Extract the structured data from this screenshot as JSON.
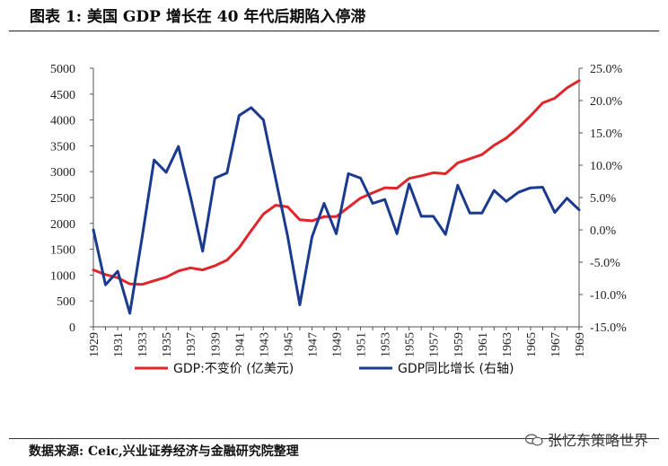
{
  "header": {
    "title": "图表 1:  美国 GDP 增长在 40 年代后期陷入停滞"
  },
  "footer": {
    "source": "数据来源: Ceic,兴业证券经济与金融研究院整理",
    "watermark": "张忆东策略世界"
  },
  "colors": {
    "gdp": "#e0262b",
    "growth": "#1a3a8f",
    "axis": "#555555"
  },
  "chart_data": {
    "type": "line",
    "title": "美国 GDP 增长在 40 年代后期陷入停滞",
    "x": [
      1929,
      1930,
      1931,
      1932,
      1933,
      1934,
      1935,
      1936,
      1937,
      1938,
      1939,
      1940,
      1941,
      1942,
      1943,
      1944,
      1945,
      1946,
      1947,
      1948,
      1949,
      1950,
      1951,
      1952,
      1953,
      1954,
      1955,
      1956,
      1957,
      1958,
      1959,
      1960,
      1961,
      1962,
      1963,
      1964,
      1965,
      1966,
      1967,
      1968,
      1969
    ],
    "xticks": [
      1929,
      1931,
      1933,
      1935,
      1937,
      1939,
      1941,
      1943,
      1945,
      1947,
      1949,
      1951,
      1953,
      1955,
      1957,
      1959,
      1961,
      1963,
      1965,
      1967,
      1969
    ],
    "y_left": {
      "ticks": [
        0,
        500,
        1000,
        1500,
        2000,
        2500,
        3000,
        3500,
        4000,
        4500,
        5000
      ],
      "ylim": [
        0,
        5000
      ]
    },
    "y_right": {
      "ticks": [
        -15,
        -10,
        -5,
        0,
        5,
        10,
        15,
        20,
        25
      ],
      "tick_labels": [
        "-15.0%",
        "-10.0%",
        "-5.0%",
        "0.0%",
        "5.0%",
        "10.0%",
        "15.0%",
        "20.0%",
        "25.0%"
      ],
      "ylim": [
        -15,
        25
      ]
    },
    "series": [
      {
        "name": "GDP:不变价  (亿美元)",
        "axis": "left",
        "color": "#e0262b",
        "values": [
          1100,
          1010,
          950,
          830,
          820,
          890,
          960,
          1080,
          1140,
          1100,
          1180,
          1290,
          1530,
          1860,
          2180,
          2350,
          2320,
          2070,
          2050,
          2130,
          2130,
          2310,
          2490,
          2590,
          2690,
          2680,
          2870,
          2920,
          2980,
          2960,
          3170,
          3250,
          3330,
          3510,
          3650,
          3850,
          4080,
          4330,
          4420,
          4620,
          4760
        ]
      },
      {
        "name": "GDP同比增长  (右轴)",
        "axis": "right",
        "color": "#1a3a8f",
        "values": [
          0.0,
          -8.5,
          -6.4,
          -12.9,
          -1.3,
          10.8,
          8.9,
          12.9,
          5.1,
          -3.3,
          8.0,
          8.8,
          17.7,
          18.9,
          17.0,
          8.0,
          -1.0,
          -11.6,
          -1.1,
          4.1,
          -0.6,
          8.7,
          8.0,
          4.1,
          4.7,
          -0.6,
          7.1,
          2.1,
          2.1,
          -0.7,
          6.9,
          2.6,
          2.6,
          6.1,
          4.4,
          5.8,
          6.5,
          6.6,
          2.7,
          4.9,
          3.1
        ]
      }
    ]
  }
}
